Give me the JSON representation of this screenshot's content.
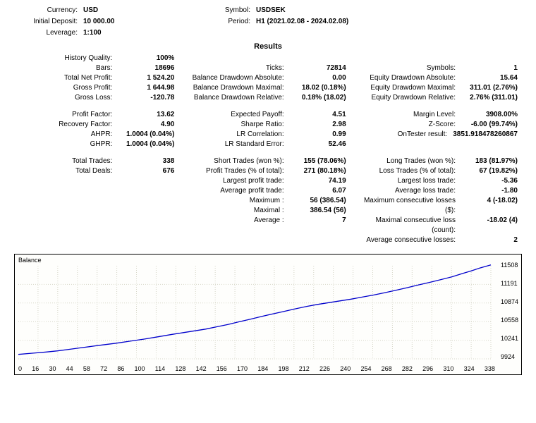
{
  "header": {
    "currency_label": "Currency:",
    "currency": "USD",
    "initial_deposit_label": "Initial Deposit:",
    "initial_deposit": "10 000.00",
    "leverage_label": "Leverage:",
    "leverage": "1:100",
    "symbol_label": "Symbol:",
    "symbol": "USDSEK",
    "period_label": "Period:",
    "period": "H1 (2021.02.08 - 2024.02.08)"
  },
  "results_title": "Results",
  "col1": [
    {
      "label": "History Quality:",
      "value": "100%"
    },
    {
      "label": "Bars:",
      "value": "18696"
    },
    {
      "label": "Total Net Profit:",
      "value": "1 524.20"
    },
    {
      "label": "Gross Profit:",
      "value": "1 644.98"
    },
    {
      "label": "Gross Loss:",
      "value": "-120.78"
    },
    {
      "spacer": true
    },
    {
      "label": "Profit Factor:",
      "value": "13.62"
    },
    {
      "label": "Recovery Factor:",
      "value": "4.90"
    },
    {
      "label": "AHPR:",
      "value": "1.0004 (0.04%)"
    },
    {
      "label": "GHPR:",
      "value": "1.0004 (0.04%)"
    },
    {
      "spacer": true
    },
    {
      "label": "Total Trades:",
      "value": "338"
    },
    {
      "label": "Total Deals:",
      "value": "676"
    }
  ],
  "col2": [
    {
      "spacer14": true
    },
    {
      "label": "Ticks:",
      "value": "72814"
    },
    {
      "label": "Balance Drawdown Absolute:",
      "value": "0.00"
    },
    {
      "label": "Balance Drawdown Maximal:",
      "value": "18.02 (0.18%)"
    },
    {
      "label": "Balance Drawdown Relative:",
      "value": "0.18% (18.02)"
    },
    {
      "spacer": true
    },
    {
      "label": "Expected Payoff:",
      "value": "4.51"
    },
    {
      "label": "Sharpe Ratio:",
      "value": "2.98"
    },
    {
      "label": "LR Correlation:",
      "value": "0.99"
    },
    {
      "label": "LR Standard Error:",
      "value": "52.46"
    },
    {
      "spacer": true
    },
    {
      "label": "Short Trades (won %):",
      "value": "155 (78.06%)"
    },
    {
      "label": "Profit Trades (% of total):",
      "value": "271 (80.18%)"
    },
    {
      "label": "Largest profit trade:",
      "value": "74.19"
    },
    {
      "label": "Average profit trade:",
      "value": "6.07"
    },
    {
      "label": "Maximum :",
      "value": "56 (386.54)"
    },
    {
      "label": "Maximal :",
      "value": "386.54 (56)"
    },
    {
      "label": "Average :",
      "value": "7"
    }
  ],
  "col3": [
    {
      "spacer14": true
    },
    {
      "label": "Symbols:",
      "value": "1"
    },
    {
      "label": "Equity Drawdown Absolute:",
      "value": "15.64"
    },
    {
      "label": "Equity Drawdown Maximal:",
      "value": "311.01 (2.76%)"
    },
    {
      "label": "Equity Drawdown Relative:",
      "value": "2.76% (311.01)"
    },
    {
      "spacer": true
    },
    {
      "label": "Margin Level:",
      "value": "3908.00%"
    },
    {
      "label": "Z-Score:",
      "value": "-6.00 (99.74%)"
    },
    {
      "label": "OnTester result:",
      "value": "3851.918478260867"
    },
    {
      "spacer14": true
    },
    {
      "spacer": true
    },
    {
      "label": "Long Trades (won %):",
      "value": "183 (81.97%)"
    },
    {
      "label": "Loss Trades (% of total):",
      "value": "67 (19.82%)"
    },
    {
      "label": "Largest loss trade:",
      "value": "-5.36"
    },
    {
      "label": "Average loss trade:",
      "value": "-1.80"
    },
    {
      "label": "Maximum consecutive losses ($):",
      "value": "4 (-18.02)"
    },
    {
      "label": "Maximal consecutive loss (count):",
      "value": "-18.02 (4)"
    },
    {
      "label": "Average consecutive losses:",
      "value": "2"
    }
  ],
  "chart": {
    "title": "Balance",
    "line_color": "#0000cc",
    "grid_color": "#d6d6c8",
    "y_min": 9924,
    "y_max": 11508,
    "y_labels": [
      "11508",
      "11191",
      "10874",
      "10558",
      "10241",
      "9924"
    ],
    "x_labels": [
      "0",
      "16",
      "30",
      "44",
      "58",
      "72",
      "86",
      "100",
      "114",
      "128",
      "142",
      "156",
      "170",
      "184",
      "198",
      "212",
      "226",
      "240",
      "254",
      "268",
      "282",
      "296",
      "310",
      "324",
      "338"
    ],
    "points": [
      [
        0,
        10000
      ],
      [
        10,
        10020
      ],
      [
        20,
        10040
      ],
      [
        28,
        10060
      ],
      [
        36,
        10085
      ],
      [
        44,
        10110
      ],
      [
        52,
        10135
      ],
      [
        60,
        10160
      ],
      [
        70,
        10190
      ],
      [
        80,
        10225
      ],
      [
        90,
        10260
      ],
      [
        100,
        10300
      ],
      [
        110,
        10340
      ],
      [
        118,
        10370
      ],
      [
        126,
        10400
      ],
      [
        134,
        10430
      ],
      [
        142,
        10470
      ],
      [
        150,
        10510
      ],
      [
        158,
        10555
      ],
      [
        166,
        10600
      ],
      [
        174,
        10645
      ],
      [
        182,
        10690
      ],
      [
        190,
        10730
      ],
      [
        198,
        10775
      ],
      [
        206,
        10815
      ],
      [
        214,
        10850
      ],
      [
        222,
        10880
      ],
      [
        230,
        10910
      ],
      [
        238,
        10940
      ],
      [
        246,
        10975
      ],
      [
        254,
        11010
      ],
      [
        262,
        11050
      ],
      [
        270,
        11090
      ],
      [
        278,
        11135
      ],
      [
        286,
        11180
      ],
      [
        294,
        11225
      ],
      [
        302,
        11270
      ],
      [
        310,
        11320
      ],
      [
        318,
        11380
      ],
      [
        324,
        11420
      ],
      [
        330,
        11470
      ],
      [
        338,
        11524
      ]
    ]
  }
}
